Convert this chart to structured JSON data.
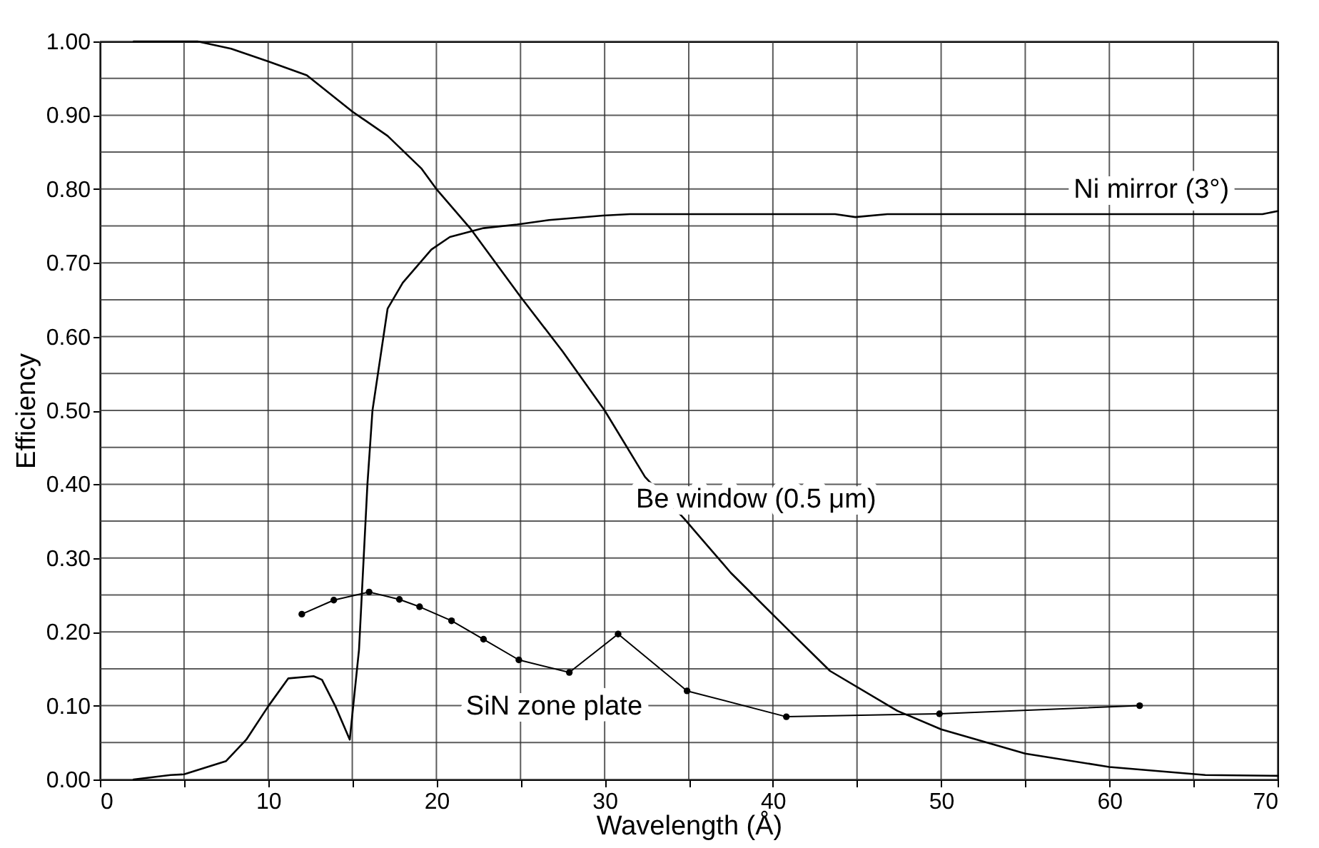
{
  "chart_data": {
    "type": "line",
    "xlabel": "Wavelength (Å)",
    "ylabel": "Efficiency",
    "xlim": [
      0,
      70
    ],
    "ylim": [
      0,
      1
    ],
    "xticks": [
      0,
      {
        "value": 5,
        "label": null
      },
      10,
      {
        "value": 15,
        "label": null
      },
      20,
      {
        "value": 25,
        "label": null
      },
      30,
      {
        "value": 35,
        "label": null
      },
      40,
      {
        "value": 45,
        "label": null
      },
      50,
      {
        "value": 55,
        "label": null
      },
      60,
      {
        "value": 65,
        "label": null
      },
      70
    ],
    "yticks": [
      {
        "value": 0,
        "label": "0.00"
      },
      {
        "value": 0.05,
        "label": null
      },
      {
        "value": 0.1,
        "label": "0.10"
      },
      {
        "value": 0.15,
        "label": null
      },
      {
        "value": 0.2,
        "label": "0.20"
      },
      {
        "value": 0.25,
        "label": null
      },
      {
        "value": 0.3,
        "label": "0.30"
      },
      {
        "value": 0.35,
        "label": null
      },
      {
        "value": 0.4,
        "label": "0.40"
      },
      {
        "value": 0.45,
        "label": null
      },
      {
        "value": 0.5,
        "label": "0.50"
      },
      {
        "value": 0.55,
        "label": null
      },
      {
        "value": 0.6,
        "label": "0.60"
      },
      {
        "value": 0.65,
        "label": null
      },
      {
        "value": 0.7,
        "label": "0.70"
      },
      {
        "value": 0.75,
        "label": null
      },
      {
        "value": 0.8,
        "label": "0.80"
      },
      {
        "value": 0.85,
        "label": null
      },
      {
        "value": 0.9,
        "label": "0.90"
      },
      {
        "value": 0.95,
        "label": null
      },
      {
        "value": 1,
        "label": "1.00"
      }
    ],
    "grid": true,
    "marker": "none",
    "line_style": "solid",
    "series": [
      {
        "name": "Be window (0.5 μm)",
        "color": "#000000",
        "x": [
          2,
          5,
          5.8,
          7.8,
          10,
          12.3,
          15,
          17.1,
          19.1,
          20,
          22,
          25,
          27.5,
          30,
          32.4,
          34.7,
          37.5,
          40.9,
          43.4,
          47.4,
          50,
          55,
          60,
          65.7,
          70
        ],
        "values": [
          1.0,
          1.0,
          1.0,
          0.99,
          0.973,
          0.954,
          0.905,
          0.872,
          0.828,
          0.8,
          0.747,
          0.654,
          0.58,
          0.5,
          0.41,
          0.354,
          0.28,
          0.203,
          0.147,
          0.093,
          0.068,
          0.035,
          0.017,
          0.006,
          0.005
        ]
      },
      {
        "name": "Ni mirror (3°)",
        "color": "#000000",
        "x": [
          2,
          4.2,
          5,
          7.5,
          8.7,
          10,
          11.2,
          12.7,
          13.2,
          14,
          14.85,
          15.4,
          15.9,
          16.2,
          17.1,
          18,
          19.7,
          20.8,
          22.8,
          24.8,
          26.7,
          29.9,
          31.5,
          43.7,
          44.9,
          46.8,
          69.1,
          70
        ],
        "values": [
          0,
          0.006,
          0.007,
          0.025,
          0.054,
          0.099,
          0.137,
          0.14,
          0.135,
          0.099,
          0.054,
          0.176,
          0.4,
          0.5,
          0.638,
          0.673,
          0.718,
          0.735,
          0.747,
          0.752,
          0.758,
          0.764,
          0.766,
          0.766,
          0.762,
          0.766,
          0.766,
          0.77
        ]
      },
      {
        "name": "SiN zone plate",
        "color": "#000000",
        "marker": "circle",
        "x": [
          12,
          13.9,
          16,
          17.8,
          19,
          20.9,
          22.8,
          24.9,
          27.9,
          30.8,
          34.9,
          40.8,
          49.9,
          61.8
        ],
        "values": [
          0.224,
          0.243,
          0.254,
          0.244,
          0.234,
          0.215,
          0.19,
          0.162,
          0.145,
          0.197,
          0.12,
          0.085,
          0.089,
          0.1
        ]
      }
    ]
  }
}
